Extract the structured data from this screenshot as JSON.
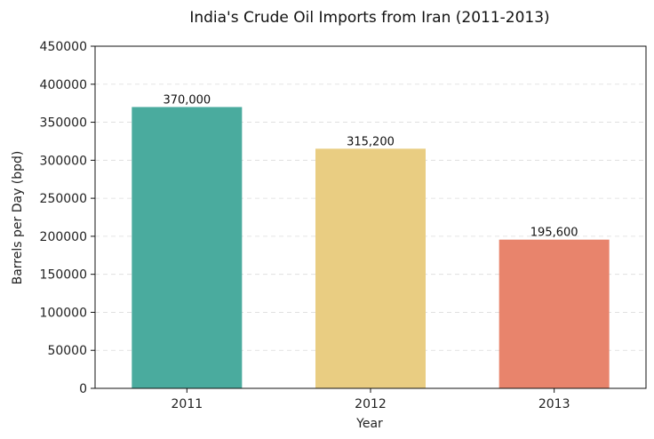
{
  "chart_data": {
    "type": "bar",
    "title": "India's Crude Oil Imports from Iran (2011-2013)",
    "xlabel": "Year",
    "ylabel": "Barrels per Day (bpd)",
    "categories": [
      "2011",
      "2012",
      "2013"
    ],
    "values": [
      370000,
      315200,
      195600
    ],
    "data_labels": [
      "370,000",
      "315,200",
      "195,600"
    ],
    "colors": [
      "#4aab9e",
      "#e9cd82",
      "#e8846c"
    ],
    "ylim": [
      0,
      450000
    ],
    "yticks": [
      0,
      50000,
      100000,
      150000,
      200000,
      250000,
      300000,
      350000,
      400000,
      450000
    ],
    "ytick_labels": [
      "0",
      "50000",
      "100000",
      "150000",
      "200000",
      "250000",
      "300000",
      "350000",
      "400000",
      "450000"
    ],
    "grid": true,
    "legend": "none"
  }
}
